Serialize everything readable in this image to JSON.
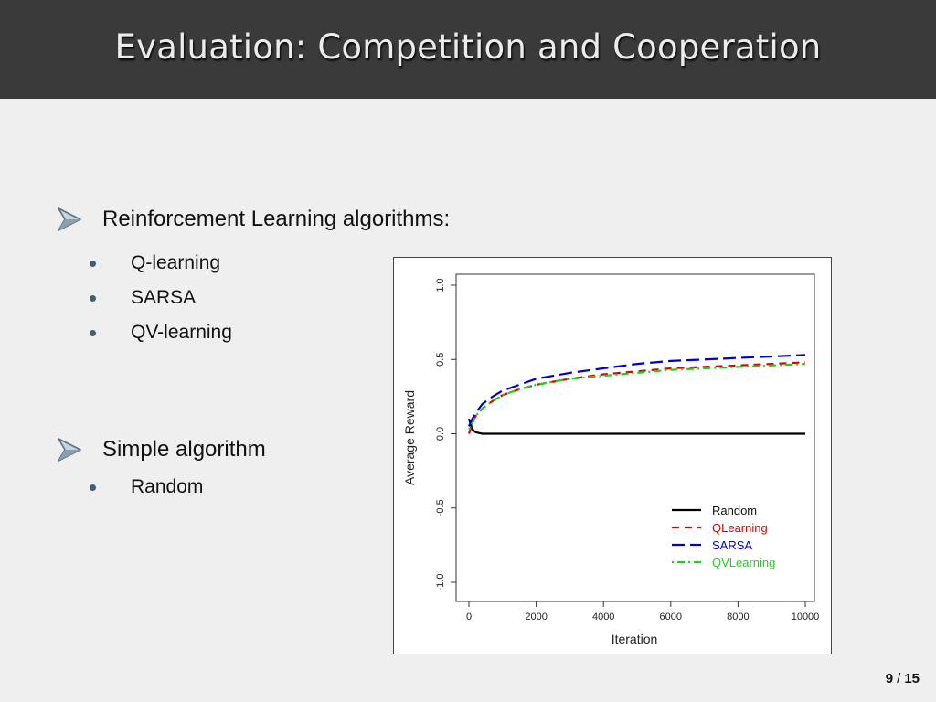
{
  "slide": {
    "title": "Evaluation: Competition and Cooperation",
    "page_current": "9",
    "page_sep": "/",
    "page_total": "15"
  },
  "bullets": [
    {
      "text": "Reinforcement Learning algorithms:",
      "items": [
        "Q-learning",
        "SARSA",
        "QV-learning"
      ]
    },
    {
      "text": "Simple algorithm",
      "items": [
        "Random"
      ]
    }
  ],
  "chart_data": {
    "type": "line",
    "xlabel": "Iteration",
    "ylabel": "Average Reward",
    "xlim": [
      0,
      10000
    ],
    "ylim": [
      -1.0,
      1.0
    ],
    "xticks": [
      "0",
      "2000",
      "4000",
      "6000",
      "8000",
      "10000"
    ],
    "yticks": [
      "-1.0",
      "-0.5",
      "0.0",
      "0.5",
      "1.0"
    ],
    "legend_position": "bottom-right",
    "series": [
      {
        "name": "Random",
        "color": "#000000",
        "style": "solid",
        "x": [
          0,
          100,
          200,
          400,
          1000,
          2000,
          4000,
          6000,
          8000,
          10000
        ],
        "y": [
          0.1,
          0.03,
          0.01,
          0.0,
          0.0,
          0.0,
          0.0,
          0.0,
          0.0,
          0.0
        ]
      },
      {
        "name": "QLearning",
        "color": "#e00000",
        "style": "dashed",
        "x": [
          0,
          100,
          200,
          400,
          700,
          1000,
          1500,
          2000,
          3000,
          4000,
          5000,
          6000,
          7000,
          8000,
          9000,
          10000
        ],
        "y": [
          0.0,
          0.07,
          0.12,
          0.17,
          0.22,
          0.26,
          0.3,
          0.33,
          0.37,
          0.4,
          0.42,
          0.44,
          0.45,
          0.46,
          0.47,
          0.48
        ]
      },
      {
        "name": "SARSA",
        "color": "#0000d0",
        "style": "longdash",
        "x": [
          0,
          100,
          200,
          400,
          700,
          1000,
          1500,
          2000,
          3000,
          4000,
          5000,
          6000,
          7000,
          8000,
          9000,
          10000
        ],
        "y": [
          0.05,
          0.1,
          0.14,
          0.2,
          0.25,
          0.29,
          0.33,
          0.37,
          0.41,
          0.44,
          0.47,
          0.49,
          0.5,
          0.51,
          0.52,
          0.53
        ]
      },
      {
        "name": "QVLearning",
        "color": "#20d020",
        "style": "dotdash",
        "x": [
          0,
          100,
          200,
          400,
          700,
          1000,
          1500,
          2000,
          3000,
          4000,
          5000,
          6000,
          7000,
          8000,
          9000,
          10000
        ],
        "y": [
          0.03,
          0.07,
          0.12,
          0.17,
          0.22,
          0.26,
          0.3,
          0.33,
          0.37,
          0.39,
          0.41,
          0.43,
          0.44,
          0.45,
          0.46,
          0.47
        ]
      }
    ]
  }
}
